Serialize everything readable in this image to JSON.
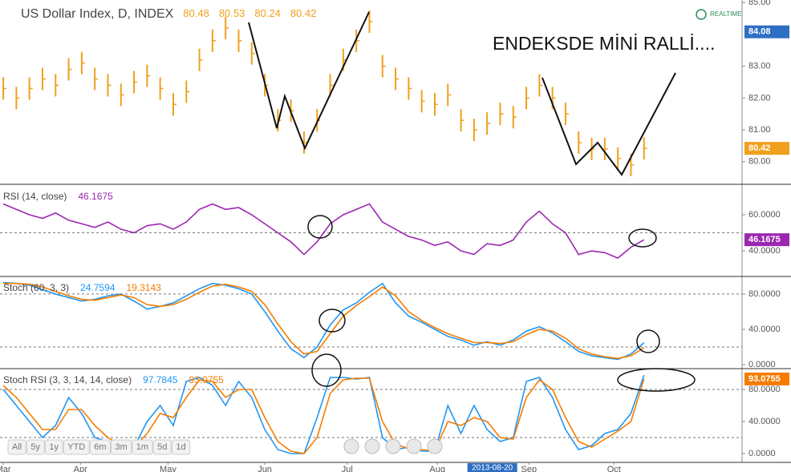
{
  "time_axis": {
    "x": [
      0,
      1,
      2,
      3,
      4,
      5,
      6,
      7,
      8,
      9,
      10,
      11,
      12,
      13,
      14,
      15,
      16,
      17,
      18,
      19,
      20,
      21,
      22,
      23,
      24,
      25,
      26,
      27,
      28,
      29,
      30,
      31,
      32,
      33,
      34,
      35,
      36,
      37,
      38,
      39,
      40,
      41,
      42,
      43,
      44,
      45,
      46,
      47,
      48,
      49
    ],
    "xlim": [
      -0.25,
      56.5
    ],
    "xticks": [
      {
        "value": 0,
        "label": "Mar"
      },
      {
        "value": 5.9,
        "label": "Apr"
      },
      {
        "value": 12.6,
        "label": "May"
      },
      {
        "value": 20,
        "label": "Jun"
      },
      {
        "value": 26.3,
        "label": "Jul"
      },
      {
        "value": 33.2,
        "label": "Aug"
      },
      {
        "value": 40.2,
        "label": "Sep"
      },
      {
        "value": 46.7,
        "label": "Oct"
      }
    ],
    "cursor": {
      "value": 37.4,
      "label": "2013-08-20"
    }
  },
  "chart_data": [
    {
      "type": "pricebar",
      "title": "US Dollar Index, D, INDEX",
      "last_bar": {
        "open": 80.48,
        "high": 80.53,
        "low": 80.24
      },
      "series": [
        {
          "color": "#f0a01e",
          "values": [
            82.3,
            82.0,
            82.3,
            82.6,
            82.4,
            82.9,
            83.1,
            82.6,
            82.4,
            82.1,
            82.5,
            82.7,
            82.3,
            81.8,
            82.2,
            83.2,
            83.8,
            84.2,
            83.8,
            83.4,
            82.4,
            81.3,
            81.6,
            80.6,
            81.3,
            82.4,
            83.2,
            83.8,
            84.4,
            83.0,
            82.6,
            82.3,
            81.9,
            81.8,
            82.1,
            81.3,
            81.0,
            81.2,
            81.5,
            81.4,
            82.0,
            82.4,
            82.0,
            81.5,
            80.6,
            80.4,
            80.4,
            80.1,
            79.9,
            80.42
          ]
        }
      ],
      "ylim": [
        79.29,
        85.08
      ],
      "yticks": [
        {
          "value": 85,
          "label": "85.00"
        },
        {
          "value": 83,
          "label": "83.00"
        },
        {
          "value": 82,
          "label": "82.00"
        },
        {
          "value": 81,
          "label": "81.00"
        },
        {
          "value": 80,
          "label": "80.00"
        }
      ],
      "marker": 84.08,
      "last_value_box": true,
      "annotation": "ENDEKSDE MİNİ RALLİ....",
      "status": "REALTIME"
    },
    {
      "type": "line",
      "title": "RSI (14, close)",
      "series": [
        {
          "color": "#9c27b0",
          "values": [
            66,
            63,
            60,
            58,
            61,
            57,
            55,
            53,
            56,
            52,
            50,
            54,
            55,
            52,
            56,
            63,
            66,
            63,
            64,
            60,
            55,
            50,
            45,
            38,
            45,
            55,
            60,
            63,
            66,
            56,
            52,
            48,
            46,
            43,
            45,
            40,
            38,
            44,
            43,
            46,
            56,
            62,
            55,
            50,
            38,
            40,
            39,
            36,
            42,
            46.1675
          ]
        }
      ],
      "ylim": [
        25.8,
        76
      ],
      "yticks": [
        {
          "value": 60,
          "label": "60.0000"
        },
        {
          "value": 40,
          "label": "40.0000"
        }
      ],
      "bands": [
        50
      ],
      "last_value_box": true
    },
    {
      "type": "line",
      "title": "Stoch (60, 3, 3)",
      "series": [
        {
          "color": "#2196f3",
          "values": [
            93,
            92,
            90,
            85,
            80,
            76,
            72,
            74,
            78,
            80,
            72,
            63,
            66,
            70,
            78,
            86,
            92,
            90,
            86,
            80,
            60,
            38,
            18,
            8,
            20,
            45,
            62,
            70,
            82,
            92,
            70,
            55,
            48,
            40,
            32,
            28,
            22,
            26,
            22,
            28,
            38,
            43,
            36,
            26,
            15,
            10,
            8,
            6,
            12,
            24.7594
          ]
        },
        {
          "color": "#f57c00",
          "values": [
            92,
            92,
            91,
            88,
            83,
            78,
            74,
            73,
            76,
            79,
            76,
            68,
            66,
            68,
            74,
            82,
            89,
            91,
            88,
            83,
            68,
            46,
            26,
            12,
            15,
            35,
            55,
            67,
            77,
            88,
            78,
            60,
            50,
            42,
            35,
            30,
            25,
            25,
            24,
            26,
            34,
            40,
            38,
            30,
            18,
            12,
            9,
            7,
            10,
            19.3143
          ]
        }
      ],
      "ylim": [
        -4.5,
        99
      ],
      "yticks": [
        {
          "value": 80,
          "label": "80.0000"
        },
        {
          "value": 40,
          "label": "40.0000"
        },
        {
          "value": 0,
          "label": "0.0000"
        }
      ],
      "bands": [
        80,
        20
      ],
      "last_value_box": false
    },
    {
      "type": "line",
      "title": "Stoch RSI (3, 3, 14, 14, close)",
      "series": [
        {
          "color": "#2196f3",
          "values": [
            80,
            60,
            40,
            20,
            35,
            70,
            50,
            20,
            15,
            5,
            8,
            40,
            60,
            35,
            90,
            95,
            85,
            60,
            90,
            70,
            30,
            5,
            0,
            0,
            45,
            95,
            95,
            93,
            95,
            20,
            5,
            8,
            3,
            3,
            60,
            25,
            60,
            30,
            15,
            20,
            90,
            95,
            70,
            30,
            5,
            10,
            25,
            30,
            50,
            97.7845
          ]
        },
        {
          "color": "#f57c00",
          "values": [
            85,
            70,
            50,
            30,
            30,
            55,
            55,
            35,
            20,
            10,
            8,
            25,
            50,
            45,
            70,
            92,
            90,
            70,
            80,
            80,
            45,
            15,
            3,
            0,
            20,
            75,
            92,
            94,
            94,
            40,
            12,
            6,
            5,
            3,
            40,
            35,
            45,
            40,
            20,
            18,
            70,
            92,
            80,
            45,
            15,
            8,
            18,
            28,
            40,
            93.0755
          ]
        }
      ],
      "ylim": [
        -11,
        105
      ],
      "yticks": [
        {
          "value": 80,
          "label": "80.0000"
        },
        {
          "value": 40,
          "label": "40.0000"
        },
        {
          "value": 0,
          "label": "0.0000"
        }
      ],
      "bands": [
        80,
        20
      ],
      "last_value_box": true
    }
  ],
  "range_buttons": [
    "All",
    "5y",
    "1y",
    "YTD",
    "6m",
    "3m",
    "1m",
    "5d",
    "1d"
  ]
}
